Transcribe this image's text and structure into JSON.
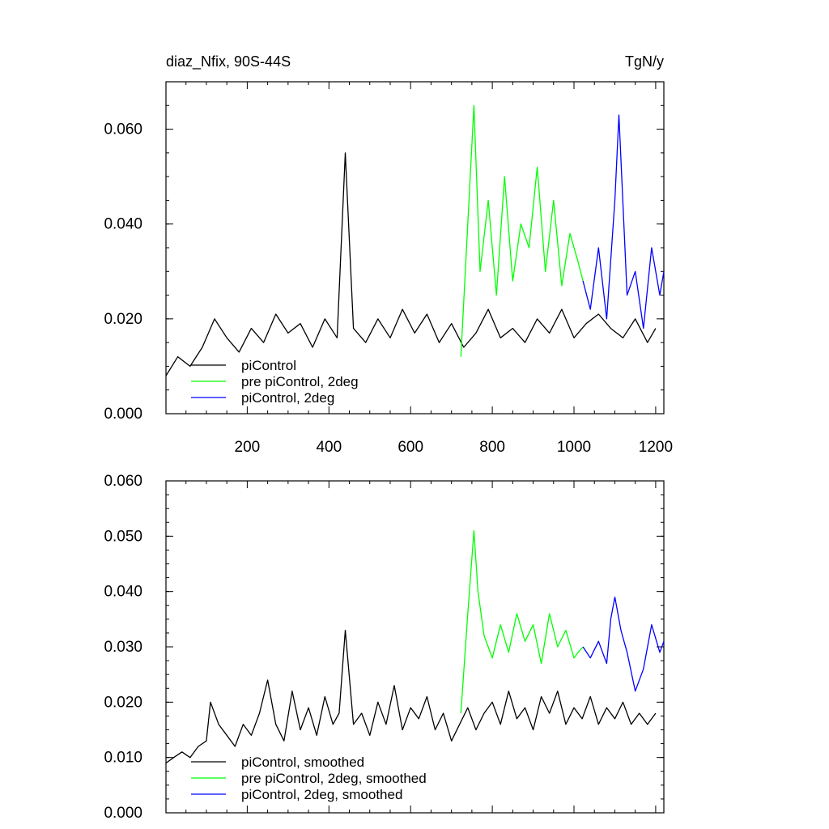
{
  "chart_data": [
    {
      "type": "line",
      "title_left": "diaz_Nfix, 90S-44S",
      "title_right": "TgN/y",
      "xlim": [
        1,
        1220
      ],
      "ylim": [
        0,
        0.07
      ],
      "yticks": [
        0,
        0.02,
        0.04,
        0.06
      ],
      "ytick_labels": [
        "0.000",
        "0.020",
        "0.040",
        "0.060"
      ],
      "xticks": [
        200,
        400,
        600,
        800,
        1000,
        1200
      ],
      "xtick_labels": [
        "200",
        "400",
        "600",
        "800",
        "1000",
        "1200"
      ],
      "grid": false,
      "legend_position": "bottom-left",
      "series": [
        {
          "name": "piControl",
          "color": "#000000",
          "x": [
            1,
            30,
            60,
            90,
            120,
            150,
            180,
            210,
            240,
            270,
            300,
            330,
            360,
            390,
            420,
            440,
            460,
            490,
            520,
            550,
            580,
            610,
            640,
            670,
            700,
            730,
            760,
            790,
            820,
            850,
            880,
            910,
            940,
            970,
            1000,
            1030,
            1060,
            1090,
            1120,
            1150,
            1180,
            1200
          ],
          "y": [
            0.008,
            0.012,
            0.01,
            0.014,
            0.02,
            0.016,
            0.013,
            0.018,
            0.015,
            0.021,
            0.017,
            0.019,
            0.014,
            0.02,
            0.016,
            0.055,
            0.018,
            0.015,
            0.02,
            0.016,
            0.022,
            0.017,
            0.021,
            0.015,
            0.019,
            0.014,
            0.017,
            0.022,
            0.016,
            0.018,
            0.015,
            0.02,
            0.017,
            0.022,
            0.016,
            0.019,
            0.021,
            0.018,
            0.016,
            0.02,
            0.015,
            0.018
          ]
        },
        {
          "name": "pre piControl, 2deg",
          "color": "#00ff00",
          "x": [
            723,
            740,
            755,
            770,
            790,
            810,
            830,
            850,
            870,
            890,
            910,
            930,
            950,
            970,
            990,
            1010,
            1022
          ],
          "y": [
            0.012,
            0.04,
            0.065,
            0.03,
            0.045,
            0.025,
            0.05,
            0.028,
            0.04,
            0.035,
            0.052,
            0.03,
            0.045,
            0.027,
            0.038,
            0.032,
            0.028
          ]
        },
        {
          "name": "piControl, 2deg",
          "color": "#0000ff",
          "x": [
            1022,
            1040,
            1060,
            1080,
            1100,
            1110,
            1130,
            1150,
            1170,
            1190,
            1210,
            1220
          ],
          "y": [
            0.028,
            0.022,
            0.035,
            0.02,
            0.045,
            0.063,
            0.025,
            0.03,
            0.018,
            0.035,
            0.025,
            0.03
          ]
        }
      ]
    },
    {
      "type": "line",
      "xlim": [
        1,
        1220
      ],
      "ylim": [
        0,
        0.06
      ],
      "yticks": [
        0,
        0.01,
        0.02,
        0.03,
        0.04,
        0.05,
        0.06
      ],
      "ytick_labels": [
        "0.000",
        "0.010",
        "0.020",
        "0.030",
        "0.040",
        "0.050",
        "0.060"
      ],
      "grid": false,
      "legend_position": "bottom-left",
      "series": [
        {
          "name": "piControl, smoothed",
          "color": "#000000",
          "x": [
            1,
            20,
            40,
            60,
            80,
            100,
            110,
            130,
            150,
            170,
            190,
            210,
            230,
            250,
            270,
            290,
            310,
            330,
            350,
            370,
            390,
            410,
            425,
            440,
            460,
            480,
            500,
            520,
            540,
            560,
            580,
            600,
            620,
            640,
            660,
            680,
            700,
            720,
            740,
            760,
            780,
            800,
            820,
            840,
            860,
            880,
            900,
            920,
            940,
            960,
            980,
            1000,
            1020,
            1040,
            1060,
            1080,
            1100,
            1120,
            1140,
            1160,
            1180,
            1200
          ],
          "y": [
            0.009,
            0.01,
            0.011,
            0.01,
            0.012,
            0.013,
            0.02,
            0.016,
            0.014,
            0.012,
            0.016,
            0.014,
            0.018,
            0.024,
            0.016,
            0.013,
            0.022,
            0.015,
            0.019,
            0.014,
            0.021,
            0.016,
            0.018,
            0.033,
            0.016,
            0.018,
            0.014,
            0.02,
            0.016,
            0.023,
            0.015,
            0.019,
            0.017,
            0.021,
            0.015,
            0.018,
            0.013,
            0.016,
            0.019,
            0.015,
            0.018,
            0.02,
            0.016,
            0.022,
            0.017,
            0.019,
            0.015,
            0.021,
            0.018,
            0.022,
            0.016,
            0.019,
            0.017,
            0.021,
            0.016,
            0.019,
            0.017,
            0.02,
            0.016,
            0.018,
            0.016,
            0.018
          ]
        },
        {
          "name": "pre piControl, 2deg, smoothed",
          "color": "#00ff00",
          "x": [
            723,
            740,
            755,
            765,
            780,
            800,
            820,
            840,
            860,
            880,
            900,
            920,
            940,
            960,
            980,
            1000,
            1010,
            1022
          ],
          "y": [
            0.018,
            0.036,
            0.051,
            0.04,
            0.032,
            0.028,
            0.034,
            0.029,
            0.036,
            0.031,
            0.034,
            0.027,
            0.036,
            0.03,
            0.033,
            0.028,
            0.029,
            0.03
          ]
        },
        {
          "name": "piControl, 2deg, smoothed",
          "color": "#0000ff",
          "x": [
            1022,
            1040,
            1060,
            1080,
            1090,
            1100,
            1115,
            1130,
            1150,
            1170,
            1190,
            1210,
            1220
          ],
          "y": [
            0.03,
            0.028,
            0.031,
            0.027,
            0.035,
            0.039,
            0.033,
            0.029,
            0.022,
            0.026,
            0.034,
            0.029,
            0.031
          ]
        }
      ]
    }
  ]
}
